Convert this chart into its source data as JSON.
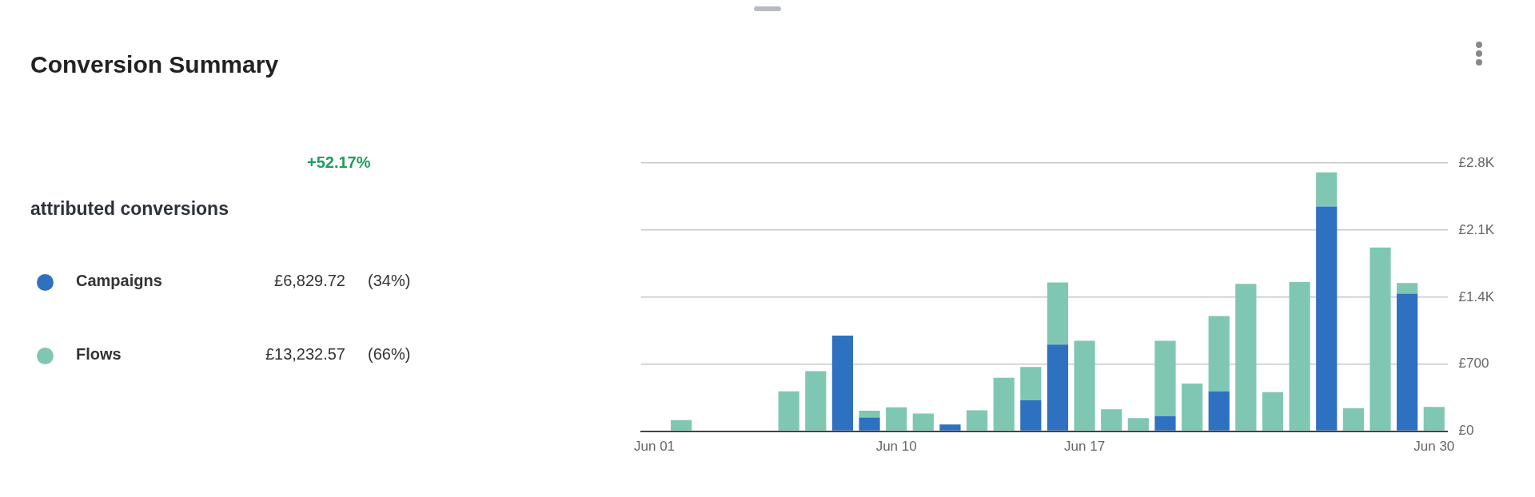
{
  "chart_data": {
    "type": "bar",
    "title": "Conversion Summary",
    "stacked": true,
    "categories": [
      "Jun 01",
      null,
      null,
      null,
      null,
      null,
      null,
      null,
      null,
      "Jun 10",
      null,
      null,
      null,
      null,
      null,
      null,
      "Jun 17",
      null,
      null,
      null,
      null,
      null,
      null,
      null,
      null,
      null,
      null,
      null,
      null,
      "Jun 30"
    ],
    "series": [
      {
        "name": "Campaigns",
        "color": "#2f71c1",
        "values": [
          0,
          0,
          0,
          0,
          0,
          0,
          0,
          999,
          142,
          0,
          0,
          69,
          0,
          0,
          323,
          905,
          0,
          0,
          0,
          157,
          0,
          416,
          0,
          0,
          0,
          2347,
          0,
          0,
          1436,
          0
        ]
      },
      {
        "name": "Flows",
        "color": "#80c7b3",
        "values": [
          0,
          115,
          0,
          0,
          0,
          416,
          628,
          0,
          72,
          250,
          184,
          0,
          217,
          558,
          347,
          649,
          944,
          229,
          136,
          787,
          498,
          788,
          1539,
          407,
          1557,
          356,
          238,
          1919,
          112,
          253
        ]
      }
    ],
    "ylim": [
      0,
      2800
    ],
    "yticks": [
      {
        "value": 0,
        "label": "£0"
      },
      {
        "value": 700,
        "label": "£700"
      },
      {
        "value": 1400,
        "label": "£1.4K"
      },
      {
        "value": 2100,
        "label": "£2.1K"
      },
      {
        "value": 2800,
        "label": "£2.8K"
      }
    ],
    "grid": "y",
    "legend": "left",
    "annotations": [
      "+52.17%",
      "attributed conversions",
      "£6,829.72",
      "(34%)",
      "£13,232.57",
      "(66%)"
    ]
  }
}
